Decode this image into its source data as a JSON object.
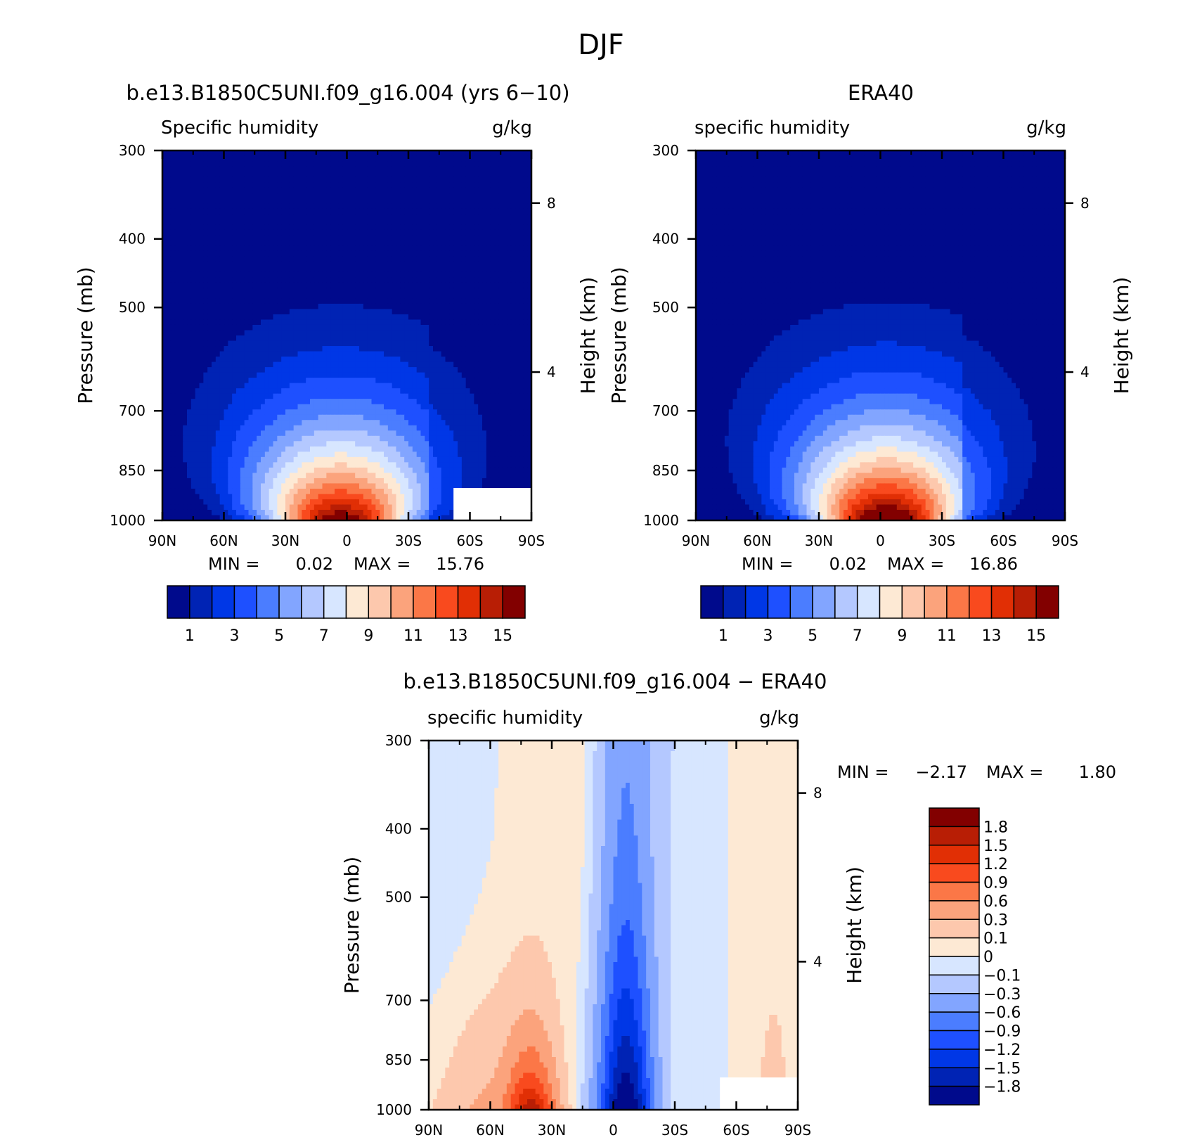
{
  "page": {
    "title": "DJF"
  },
  "chart_data": [
    {
      "id": "model",
      "type": "heatmap",
      "title": "b.e13.B1850C5UNI.f09_g16.004 (yrs 6−10)",
      "left_subtitle": "Specific humidity",
      "right_subtitle": "g/kg",
      "xlabel": "",
      "ylabel": "Pressure (mb)",
      "y2label": "Height (km)",
      "x_ticks": [
        "90N",
        "60N",
        "30N",
        "0",
        "30S",
        "60S",
        "90S"
      ],
      "y_ticks": [
        "300",
        "400",
        "500",
        "700",
        "850",
        "1000"
      ],
      "y2_ticks": [
        "8",
        "4"
      ],
      "ylim": [
        1000,
        300
      ],
      "y_scale": "log",
      "xlim": [
        90,
        -90
      ],
      "min_label": "MIN =",
      "min_value": "0.02",
      "max_label": "MAX =",
      "max_value": "15.76",
      "field": {
        "peak_lat": 3,
        "peak_value": 15.76,
        "min_value": 0.02,
        "halfwidth_surface_deg": 27,
        "profile_top_mb": 300
      },
      "legend": {
        "orientation": "horizontal",
        "labels": [
          "1",
          "3",
          "5",
          "7",
          "9",
          "11",
          "13",
          "15"
        ],
        "colors": [
          "#000a8c",
          "#0023b4",
          "#0037e6",
          "#1e50ff",
          "#4b7dff",
          "#82a5ff",
          "#b4c8ff",
          "#d7e6ff",
          "#fde9d4",
          "#fdc8ad",
          "#fba37c",
          "#fb7747",
          "#f94a1e",
          "#e12f05",
          "#b81e05",
          "#820000"
        ]
      },
      "missing_region": "white block near 60S-90S below 900 mb"
    },
    {
      "id": "obs",
      "type": "heatmap",
      "title": "ERA40",
      "left_subtitle": "specific humidity",
      "right_subtitle": "g/kg",
      "xlabel": "",
      "ylabel": "Pressure (mb)",
      "y2label": "Height (km)",
      "x_ticks": [
        "90N",
        "60N",
        "30N",
        "0",
        "30S",
        "60S",
        "90S"
      ],
      "y_ticks": [
        "300",
        "400",
        "500",
        "700",
        "850",
        "1000"
      ],
      "y2_ticks": [
        "8",
        "4"
      ],
      "ylim": [
        1000,
        300
      ],
      "y_scale": "log",
      "xlim": [
        90,
        -90
      ],
      "min_label": "MIN =",
      "min_value": "0.02",
      "max_label": "MAX =",
      "max_value": "16.86",
      "field": {
        "peak_lat": -3,
        "peak_value": 16.86,
        "min_value": 0.02,
        "halfwidth_surface_deg": 28,
        "profile_top_mb": 300
      },
      "legend": {
        "orientation": "horizontal",
        "labels": [
          "1",
          "3",
          "5",
          "7",
          "9",
          "11",
          "13",
          "15"
        ],
        "colors": [
          "#000a8c",
          "#0023b4",
          "#0037e6",
          "#1e50ff",
          "#4b7dff",
          "#82a5ff",
          "#b4c8ff",
          "#d7e6ff",
          "#fde9d4",
          "#fdc8ad",
          "#fba37c",
          "#fb7747",
          "#f94a1e",
          "#e12f05",
          "#b81e05",
          "#820000"
        ]
      }
    },
    {
      "id": "diff",
      "type": "heatmap",
      "title": "b.e13.B1850C5UNI.f09_g16.004 − ERA40",
      "left_subtitle": "specific humidity",
      "right_subtitle": "g/kg",
      "xlabel": "",
      "ylabel": "Pressure (mb)",
      "y2label": "Height (km)",
      "x_ticks": [
        "90N",
        "60N",
        "30N",
        "0",
        "30S",
        "60S",
        "90S"
      ],
      "y_ticks": [
        "300",
        "400",
        "500",
        "700",
        "850",
        "1000"
      ],
      "y2_ticks": [
        "8",
        "4"
      ],
      "ylim": [
        1000,
        300
      ],
      "y_scale": "log",
      "xlim": [
        90,
        -90
      ],
      "min_label": "MIN =",
      "min_value": "−2.17",
      "max_label": "MAX =",
      "max_value": "1.80",
      "field": {
        "min_value": -2.17,
        "max_value": 1.8,
        "dry_core_lat": -6,
        "moist_lobe_lat": 40
      },
      "legend": {
        "orientation": "vertical",
        "labels": [
          "1.8",
          "1.5",
          "1.2",
          "0.9",
          "0.6",
          "0.3",
          "0.1",
          "0",
          "−0.1",
          "−0.3",
          "−0.6",
          "−0.9",
          "−1.2",
          "−1.5",
          "−1.8"
        ],
        "colors": [
          "#820000",
          "#b81e05",
          "#e12f05",
          "#f94a1e",
          "#fb7747",
          "#fba37c",
          "#fdc8ad",
          "#fde9d4",
          "#d7e6ff",
          "#b4c8ff",
          "#82a5ff",
          "#4b7dff",
          "#1e50ff",
          "#0037e6",
          "#0023b4",
          "#000a8c"
        ]
      },
      "missing_region": "white block near 60S-90S below 900 mb"
    }
  ]
}
